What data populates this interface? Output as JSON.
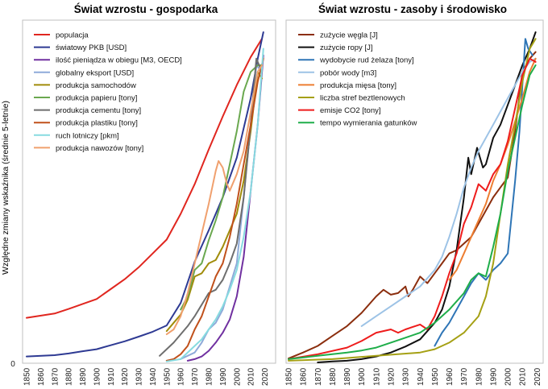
{
  "chart_data": [
    {
      "type": "line",
      "title": "Świat wzrostu - gospodarka",
      "ylabel": "Względne zmiany wskaźnika (średnie 5-letnie)",
      "xlabel": "",
      "xlim": [
        1850,
        2022
      ],
      "ylim": [
        0,
        1
      ],
      "yticks": [
        "0"
      ],
      "xticks": [
        "1850",
        "1860",
        "1870",
        "1880",
        "1890",
        "1900",
        "1910",
        "1920",
        "1930",
        "1940",
        "1950",
        "1960",
        "1970",
        "1980",
        "1990",
        "2000",
        "2010",
        "2020"
      ],
      "grid": false,
      "legend_position": "top-left",
      "series": [
        {
          "name": "populacja",
          "color": "#e0261f",
          "x": [
            1850,
            1870,
            1880,
            1890,
            1900,
            1910,
            1920,
            1930,
            1940,
            1950,
            1960,
            1970,
            1980,
            1990,
            2000,
            2010,
            2018
          ],
          "y": [
            0.135,
            0.148,
            0.162,
            0.177,
            0.192,
            0.222,
            0.252,
            0.288,
            0.33,
            0.372,
            0.45,
            0.54,
            0.645,
            0.745,
            0.84,
            0.925,
            0.98
          ]
        },
        {
          "name": "światowy PKB [USD]",
          "color": "#2e3a93",
          "x": [
            1850,
            1870,
            1880,
            1890,
            1900,
            1910,
            1920,
            1930,
            1940,
            1950,
            1960,
            1970,
            1980,
            1990,
            2000,
            2010,
            2015,
            2019
          ],
          "y": [
            0.018,
            0.022,
            0.027,
            0.034,
            0.04,
            0.052,
            0.064,
            0.078,
            0.093,
            0.112,
            0.18,
            0.305,
            0.4,
            0.5,
            0.62,
            0.8,
            0.92,
            1.0
          ]
        },
        {
          "name": "ilość pieniądza w obiegu [M3, OECD]",
          "color": "#7030a0",
          "x": [
            1965,
            1970,
            1975,
            1980,
            1985,
            1990,
            1995,
            2000,
            2005,
            2010,
            2015,
            2019
          ],
          "y": [
            0.005,
            0.01,
            0.018,
            0.035,
            0.06,
            0.09,
            0.13,
            0.2,
            0.32,
            0.52,
            0.72,
            0.93
          ]
        },
        {
          "name": "globalny eksport [USD]",
          "color": "#8eaad9",
          "x": [
            1960,
            1970,
            1975,
            1980,
            1985,
            1990,
            1995,
            2000,
            2005,
            2010,
            2014,
            2018
          ],
          "y": [
            0.01,
            0.03,
            0.06,
            0.1,
            0.12,
            0.16,
            0.23,
            0.3,
            0.5,
            0.72,
            0.9,
            0.88
          ]
        },
        {
          "name": "produkcja samochodów",
          "color": "#a08c0a",
          "x": [
            1950,
            1955,
            1960,
            1965,
            1970,
            1975,
            1980,
            1985,
            1990,
            1995,
            2000,
            2005,
            2010,
            2015,
            2018
          ],
          "y": [
            0.095,
            0.12,
            0.145,
            0.19,
            0.26,
            0.27,
            0.3,
            0.31,
            0.35,
            0.4,
            0.45,
            0.55,
            0.7,
            0.88,
            0.86
          ]
        },
        {
          "name": "produkcja papieru [tony]",
          "color": "#6aa84f",
          "x": [
            1960,
            1965,
            1970,
            1975,
            1980,
            1985,
            1990,
            1995,
            2000,
            2005,
            2010,
            2015,
            2018
          ],
          "y": [
            0.16,
            0.2,
            0.28,
            0.3,
            0.37,
            0.43,
            0.5,
            0.6,
            0.7,
            0.82,
            0.88,
            0.9,
            0.9
          ]
        },
        {
          "name": "produkcja cementu [tony]",
          "color": "#6e6e6e",
          "x": [
            1945,
            1950,
            1955,
            1960,
            1965,
            1970,
            1975,
            1980,
            1985,
            1990,
            1995,
            2000,
            2005,
            2010,
            2014,
            2018
          ],
          "y": [
            0.02,
            0.04,
            0.06,
            0.085,
            0.11,
            0.14,
            0.175,
            0.21,
            0.22,
            0.25,
            0.3,
            0.36,
            0.5,
            0.72,
            0.92,
            0.88
          ]
        },
        {
          "name": "produkcja plastiku [tony]",
          "color": "#c0501b",
          "x": [
            1950,
            1955,
            1960,
            1965,
            1970,
            1975,
            1980,
            1985,
            1990,
            1995,
            2000,
            2005,
            2010,
            2015,
            2019
          ],
          "y": [
            0.005,
            0.01,
            0.025,
            0.05,
            0.1,
            0.14,
            0.2,
            0.26,
            0.3,
            0.38,
            0.48,
            0.6,
            0.72,
            0.85,
            0.92
          ]
        },
        {
          "name": "ruch lotniczy [pkm]",
          "color": "#87dbe0",
          "x": [
            1950,
            1960,
            1970,
            1975,
            1980,
            1985,
            1990,
            1995,
            2000,
            2005,
            2010,
            2015,
            2019
          ],
          "y": [
            0.003,
            0.01,
            0.05,
            0.07,
            0.1,
            0.13,
            0.17,
            0.22,
            0.28,
            0.38,
            0.52,
            0.72,
            0.95
          ]
        },
        {
          "name": "produkcja nawozów [tony]",
          "color": "#f0a06e",
          "x": [
            1950,
            1955,
            1960,
            1965,
            1970,
            1975,
            1980,
            1985,
            1987,
            1990,
            1993,
            1995,
            2000,
            2005,
            2010,
            2015,
            2018
          ],
          "y": [
            0.085,
            0.1,
            0.14,
            0.21,
            0.3,
            0.39,
            0.48,
            0.58,
            0.61,
            0.59,
            0.54,
            0.52,
            0.57,
            0.64,
            0.76,
            0.88,
            0.9
          ]
        }
      ]
    },
    {
      "type": "line",
      "title": "Świat wzrostu - zasoby i środowisko",
      "ylabel": "",
      "xlabel": "",
      "xlim": [
        1850,
        2022
      ],
      "ylim": [
        0,
        1
      ],
      "xticks": [
        "1850",
        "1860",
        "1870",
        "1880",
        "1890",
        "1900",
        "1910",
        "1920",
        "1930",
        "1940",
        "1950",
        "1960",
        "1970",
        "1980",
        "1990",
        "2000",
        "2010",
        "2020"
      ],
      "grid": false,
      "legend_position": "top-left",
      "series": [
        {
          "name": "zużycie węgla [J]",
          "color": "#8b2e0e",
          "x": [
            1850,
            1860,
            1870,
            1880,
            1890,
            1900,
            1910,
            1915,
            1920,
            1925,
            1930,
            1932,
            1935,
            1940,
            1945,
            1950,
            1955,
            1960,
            1965,
            1970,
            1975,
            1980,
            1985,
            1990,
            1995,
            2000,
            2005,
            2010,
            2015,
            2019
          ],
          "y": [
            0.012,
            0.03,
            0.05,
            0.08,
            0.11,
            0.15,
            0.2,
            0.22,
            0.205,
            0.21,
            0.23,
            0.2,
            0.22,
            0.26,
            0.24,
            0.27,
            0.3,
            0.33,
            0.34,
            0.36,
            0.38,
            0.42,
            0.46,
            0.5,
            0.53,
            0.56,
            0.7,
            0.88,
            0.92,
            0.94
          ]
        },
        {
          "name": "zużycie ropy [J]",
          "color": "#111111",
          "x": [
            1870,
            1880,
            1890,
            1900,
            1910,
            1920,
            1930,
            1940,
            1950,
            1955,
            1960,
            1965,
            1970,
            1973,
            1975,
            1979,
            1983,
            1985,
            1990,
            1995,
            2000,
            2005,
            2010,
            2015,
            2019
          ],
          "y": [
            0.0,
            0.003,
            0.005,
            0.01,
            0.018,
            0.03,
            0.048,
            0.07,
            0.12,
            0.16,
            0.23,
            0.34,
            0.5,
            0.62,
            0.57,
            0.65,
            0.59,
            0.6,
            0.68,
            0.72,
            0.78,
            0.84,
            0.9,
            0.95,
            1.0
          ]
        },
        {
          "name": "wydobycie rud żelaza [tony]",
          "color": "#2e75b6",
          "x": [
            1950,
            1955,
            1960,
            1965,
            1970,
            1975,
            1980,
            1985,
            1990,
            1995,
            2000,
            2005,
            2008,
            2012,
            2014,
            2017
          ],
          "y": [
            0.05,
            0.09,
            0.12,
            0.16,
            0.2,
            0.24,
            0.27,
            0.25,
            0.28,
            0.3,
            0.33,
            0.55,
            0.7,
            0.98,
            0.95,
            0.93
          ]
        },
        {
          "name": "pobór wody [m3]",
          "color": "#9dc3e6",
          "x": [
            1900,
            1910,
            1920,
            1930,
            1940,
            1950,
            1955,
            1960,
            1965,
            1970,
            1975,
            1980,
            1985,
            1990,
            1995,
            2000,
            2005,
            2010,
            2015,
            2019
          ],
          "y": [
            0.11,
            0.14,
            0.17,
            0.2,
            0.23,
            0.28,
            0.32,
            0.38,
            0.45,
            0.53,
            0.59,
            0.64,
            0.68,
            0.72,
            0.76,
            0.8,
            0.84,
            0.88,
            0.91,
            0.92
          ]
        },
        {
          "name": "produkcja mięsa [tony]",
          "color": "#ed7d31",
          "x": [
            1960,
            1965,
            1970,
            1975,
            1980,
            1985,
            1990,
            1995,
            2000,
            2005,
            2010,
            2015,
            2019
          ],
          "y": [
            0.25,
            0.28,
            0.33,
            0.38,
            0.43,
            0.48,
            0.55,
            0.6,
            0.66,
            0.73,
            0.8,
            0.88,
            0.92
          ]
        },
        {
          "name": "liczba stref beztlenowych",
          "color": "#a5a014",
          "x": [
            1850,
            1880,
            1910,
            1940,
            1950,
            1960,
            1970,
            1980,
            1985,
            1990,
            1995,
            2000,
            2005,
            2010,
            2015,
            2019
          ],
          "y": [
            0.005,
            0.01,
            0.02,
            0.03,
            0.04,
            0.06,
            0.09,
            0.14,
            0.2,
            0.3,
            0.45,
            0.6,
            0.72,
            0.85,
            0.95,
            0.98
          ]
        },
        {
          "name": "emisje CO2 [tony]",
          "color": "#ee1c1c",
          "x": [
            1850,
            1870,
            1890,
            1900,
            1910,
            1920,
            1925,
            1930,
            1940,
            1945,
            1950,
            1955,
            1960,
            1965,
            1970,
            1975,
            1980,
            1985,
            1990,
            1995,
            2000,
            2005,
            2010,
            2015,
            2019
          ],
          "y": [
            0.01,
            0.025,
            0.045,
            0.065,
            0.09,
            0.1,
            0.09,
            0.1,
            0.115,
            0.1,
            0.14,
            0.2,
            0.27,
            0.33,
            0.42,
            0.47,
            0.54,
            0.52,
            0.57,
            0.6,
            0.67,
            0.77,
            0.87,
            0.92,
            0.91
          ]
        },
        {
          "name": "tempo wymierania gatunków",
          "color": "#1fae4a",
          "x": [
            1850,
            1870,
            1890,
            1900,
            1910,
            1920,
            1930,
            1940,
            1950,
            1960,
            1970,
            1975,
            1980,
            1985,
            1990,
            1995,
            2000,
            2005,
            2010,
            2015,
            2019
          ],
          "y": [
            0.01,
            0.02,
            0.03,
            0.036,
            0.045,
            0.06,
            0.075,
            0.09,
            0.12,
            0.16,
            0.21,
            0.25,
            0.27,
            0.26,
            0.35,
            0.45,
            0.58,
            0.68,
            0.78,
            0.87,
            0.9
          ]
        }
      ]
    }
  ]
}
